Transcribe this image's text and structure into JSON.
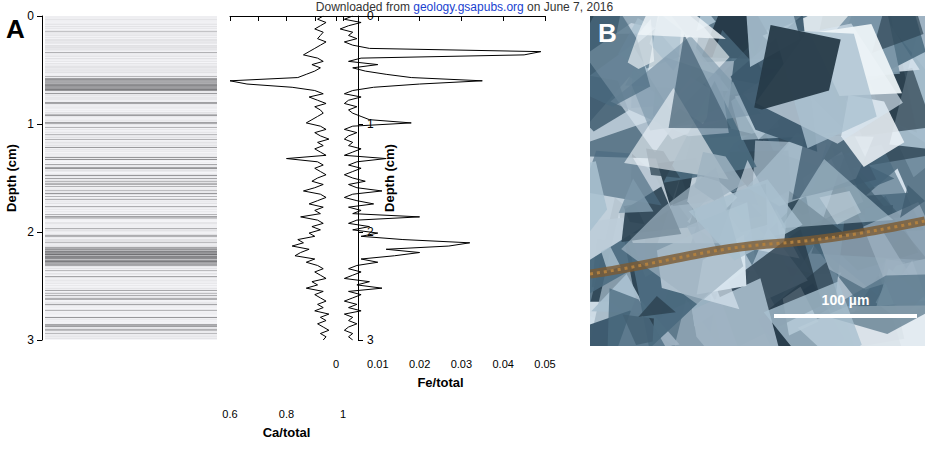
{
  "header": {
    "text": "Downloaded from ",
    "link": "geology.gsapubs.org",
    "tail": " on June 7, 2016"
  },
  "panels": [
    "A",
    "B"
  ],
  "scale_bar": "100 µm",
  "chart_data": {
    "type": "line",
    "y_label": "Depth (cm)",
    "ylim": [
      3,
      0
    ],
    "yticks": [
      0,
      1,
      2,
      3
    ],
    "y": [
      0,
      0.03,
      0.06,
      0.09,
      0.12,
      0.15,
      0.18,
      0.21,
      0.24,
      0.27,
      0.3,
      0.33,
      0.36,
      0.39,
      0.42,
      0.45,
      0.48,
      0.51,
      0.54,
      0.57,
      0.6,
      0.63,
      0.66,
      0.69,
      0.72,
      0.75,
      0.78,
      0.81,
      0.84,
      0.87,
      0.9,
      0.93,
      0.96,
      0.99,
      1.02,
      1.05,
      1.08,
      1.11,
      1.14,
      1.17,
      1.2,
      1.23,
      1.26,
      1.29,
      1.32,
      1.35,
      1.38,
      1.41,
      1.44,
      1.47,
      1.5,
      1.53,
      1.56,
      1.59,
      1.62,
      1.65,
      1.68,
      1.71,
      1.74,
      1.77,
      1.8,
      1.83,
      1.86,
      1.89,
      1.92,
      1.95,
      1.98,
      2.01,
      2.04,
      2.07,
      2.1,
      2.13,
      2.16,
      2.19,
      2.22,
      2.25,
      2.28,
      2.31,
      2.34,
      2.37,
      2.4,
      2.43,
      2.46,
      2.49,
      2.52,
      2.55,
      2.58,
      2.61,
      2.64,
      2.67,
      2.7,
      2.73,
      2.76,
      2.79,
      2.82,
      2.85,
      2.88,
      2.91,
      2.94,
      2.97,
      3
    ],
    "series": [
      {
        "name": "Ca/total",
        "color": "#000000",
        "xlim": [
          0.6,
          1
        ],
        "xticks": [
          0.6,
          0.8,
          1
        ],
        "values": [
          0.93,
          0.91,
          0.94,
          0.92,
          0.9,
          0.93,
          0.92,
          0.91,
          0.94,
          0.92,
          0.9,
          0.88,
          0.86,
          0.91,
          0.93,
          0.89,
          0.92,
          0.9,
          0.87,
          0.84,
          0.6,
          0.66,
          0.82,
          0.9,
          0.93,
          0.88,
          0.91,
          0.94,
          0.9,
          0.92,
          0.93,
          0.91,
          0.89,
          0.87,
          0.92,
          0.94,
          0.9,
          0.92,
          0.95,
          0.91,
          0.93,
          0.9,
          0.92,
          0.94,
          0.8,
          0.91,
          0.93,
          0.9,
          0.92,
          0.94,
          0.91,
          0.89,
          0.93,
          0.9,
          0.86,
          0.92,
          0.94,
          0.91,
          0.88,
          0.93,
          0.9,
          0.92,
          0.85,
          0.91,
          0.93,
          0.89,
          0.92,
          0.88,
          0.9,
          0.84,
          0.86,
          0.82,
          0.88,
          0.85,
          0.83,
          0.9,
          0.87,
          0.91,
          0.93,
          0.9,
          0.92,
          0.94,
          0.89,
          0.91,
          0.87,
          0.93,
          0.9,
          0.92,
          0.94,
          0.91,
          0.93,
          0.9,
          0.95,
          0.92,
          0.94,
          0.91,
          0.93,
          0.95,
          0.92,
          0.94,
          0.93
        ]
      },
      {
        "name": "Fe/total",
        "color": "#000000",
        "xlim": [
          0,
          0.05
        ],
        "xticks": [
          0,
          0.01,
          0.02,
          0.03,
          0.04,
          0.05
        ],
        "values": [
          0.004,
          0.002,
          0.006,
          0.003,
          0.001,
          0.004,
          0.003,
          0.005,
          0.002,
          0.004,
          0.008,
          0.049,
          0.045,
          0.006,
          0.003,
          0.01,
          0.004,
          0.007,
          0.012,
          0.018,
          0.035,
          0.02,
          0.009,
          0.004,
          0.002,
          0.006,
          0.003,
          0.002,
          0.005,
          0.003,
          0.004,
          0.006,
          0.008,
          0.018,
          0.004,
          0.002,
          0.005,
          0.003,
          0.002,
          0.004,
          0.003,
          0.006,
          0.004,
          0.002,
          0.012,
          0.005,
          0.003,
          0.006,
          0.004,
          0.002,
          0.004,
          0.007,
          0.003,
          0.005,
          0.011,
          0.004,
          0.002,
          0.005,
          0.009,
          0.003,
          0.006,
          0.004,
          0.02,
          0.005,
          0.003,
          0.008,
          0.004,
          0.01,
          0.006,
          0.016,
          0.032,
          0.027,
          0.012,
          0.02,
          0.014,
          0.006,
          0.01,
          0.005,
          0.003,
          0.006,
          0.004,
          0.002,
          0.008,
          0.005,
          0.011,
          0.003,
          0.006,
          0.004,
          0.002,
          0.005,
          0.003,
          0.006,
          0.002,
          0.004,
          0.003,
          0.005,
          0.003,
          0.002,
          0.004,
          0.003,
          0.004
        ]
      }
    ]
  }
}
